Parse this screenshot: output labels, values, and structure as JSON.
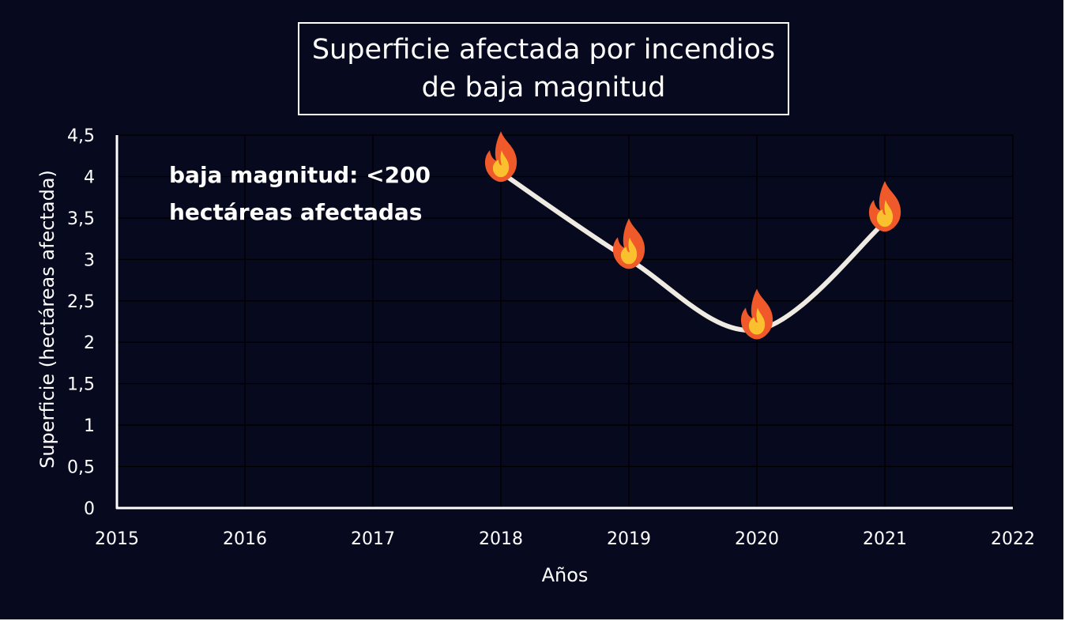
{
  "chart_data": {
    "type": "line",
    "title_lines": [
      "Superficie afectada por incendios",
      "de baja magnitud"
    ],
    "annotation_lines": [
      "baja magnitud: <200",
      "hectáreas afectadas"
    ],
    "xlabel": "Años",
    "ylabel": "Superficie (hectáreas afectada)",
    "x_ticks": [
      "2015",
      "2016",
      "2017",
      "2018",
      "2019",
      "2020",
      "2021",
      "2022"
    ],
    "y_ticks": [
      "0",
      "0,5",
      "1",
      "1,5",
      "2",
      "2,5",
      "3",
      "3,5",
      "4",
      "4,5"
    ],
    "xlim": [
      2015,
      2022
    ],
    "ylim": [
      0,
      4.5
    ],
    "grid": true,
    "marker_icon": "fire-icon",
    "series": [
      {
        "x": [
          2018,
          2019,
          2020,
          2021
        ],
        "y": [
          4.05,
          3.0,
          2.15,
          3.45
        ]
      }
    ],
    "colors": {
      "background": "#070a1f",
      "line": "#f0ebe2",
      "grid": "#000000",
      "text": "#ffffff",
      "flame_outer": "#f0592a",
      "flame_inner": "#fbc02d"
    }
  }
}
